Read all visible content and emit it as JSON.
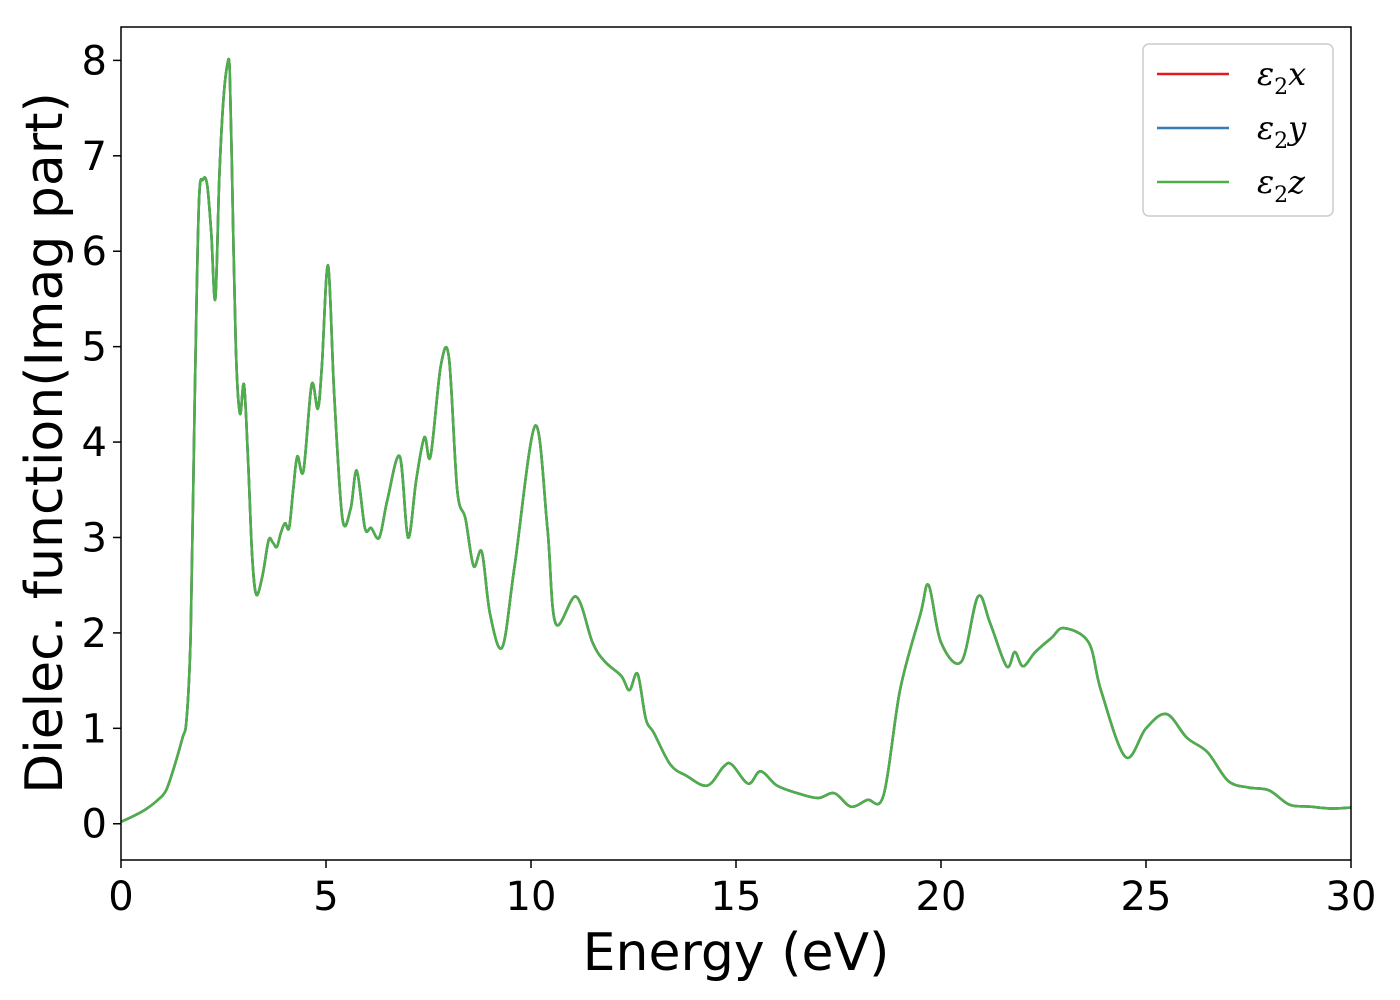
{
  "chart_data": {
    "type": "line",
    "xlabel": "Energy (eV)",
    "ylabel": "Dielec. function(Imag part)",
    "xlim": [
      0,
      30
    ],
    "ylim": [
      -0.38,
      8.35
    ],
    "xticks": [
      0,
      5,
      10,
      15,
      20,
      25,
      30
    ],
    "yticks": [
      0,
      1,
      2,
      3,
      4,
      5,
      6,
      7,
      8
    ],
    "grid": false,
    "legend_position": "top-right",
    "series": [
      {
        "name": "ε2x",
        "legend_base": "ε",
        "legend_sub": "2",
        "legend_tail": "x",
        "color": "#e41a1c"
      },
      {
        "name": "ε2y",
        "legend_base": "ε",
        "legend_sub": "2",
        "legend_tail": "y",
        "color": "#377eb8"
      },
      {
        "name": "ε2z",
        "legend_base": "ε",
        "legend_sub": "2",
        "legend_tail": "z",
        "color": "#4daf4a"
      }
    ],
    "x": [
      0,
      0.3,
      0.6,
      0.9,
      1.1,
      1.3,
      1.5,
      1.6,
      1.7,
      1.8,
      1.9,
      2.0,
      2.1,
      2.2,
      2.3,
      2.4,
      2.5,
      2.6,
      2.65,
      2.7,
      2.8,
      2.9,
      3.0,
      3.1,
      3.2,
      3.3,
      3.45,
      3.6,
      3.7,
      3.8,
      3.9,
      4.0,
      4.1,
      4.2,
      4.3,
      4.45,
      4.65,
      4.8,
      4.9,
      5.05,
      5.2,
      5.4,
      5.6,
      5.75,
      5.95,
      6.1,
      6.3,
      6.5,
      6.8,
      7.0,
      7.2,
      7.4,
      7.55,
      7.8,
      8.0,
      8.2,
      8.4,
      8.6,
      8.8,
      9.0,
      9.3,
      9.6,
      10.1,
      10.4,
      10.6,
      11.1,
      11.5,
      11.8,
      12.2,
      12.4,
      12.6,
      12.8,
      13.0,
      13.4,
      13.8,
      14.3,
      14.7,
      14.9,
      15.3,
      15.6,
      16.0,
      16.5,
      17.0,
      17.4,
      17.8,
      18.2,
      18.6,
      19.0,
      19.5,
      19.7,
      20.0,
      20.5,
      20.9,
      21.2,
      21.6,
      21.8,
      22.0,
      22.3,
      22.7,
      23.0,
      23.6,
      23.9,
      24.5,
      25.0,
      25.5,
      26.0,
      26.5,
      27.0,
      27.5,
      28.0,
      28.5,
      29.0,
      29.5,
      30.0
    ],
    "values": [
      0.02,
      0.08,
      0.15,
      0.25,
      0.35,
      0.6,
      0.9,
      1.1,
      2.0,
      4.5,
      6.5,
      6.75,
      6.7,
      6.2,
      5.5,
      6.8,
      7.6,
      7.97,
      7.9,
      7.0,
      5.0,
      4.3,
      4.6,
      3.8,
      2.8,
      2.4,
      2.6,
      2.97,
      2.95,
      2.9,
      3.05,
      3.15,
      3.1,
      3.5,
      3.85,
      3.7,
      4.6,
      4.35,
      4.8,
      5.85,
      4.5,
      3.2,
      3.3,
      3.7,
      3.1,
      3.1,
      3.0,
      3.4,
      3.85,
      3.0,
      3.6,
      4.05,
      3.85,
      4.8,
      4.88,
      3.5,
      3.2,
      2.7,
      2.85,
      2.2,
      1.85,
      2.7,
      4.17,
      3.1,
      2.1,
      2.38,
      1.9,
      1.7,
      1.55,
      1.4,
      1.57,
      1.1,
      0.95,
      0.62,
      0.5,
      0.4,
      0.6,
      0.62,
      0.42,
      0.55,
      0.4,
      0.32,
      0.27,
      0.32,
      0.18,
      0.25,
      0.3,
      1.4,
      2.2,
      2.5,
      1.9,
      1.7,
      2.38,
      2.1,
      1.65,
      1.8,
      1.65,
      1.8,
      1.95,
      2.05,
      1.9,
      1.4,
      0.7,
      1.0,
      1.15,
      0.9,
      0.75,
      0.45,
      0.38,
      0.35,
      0.2,
      0.18,
      0.16,
      0.17
    ]
  }
}
